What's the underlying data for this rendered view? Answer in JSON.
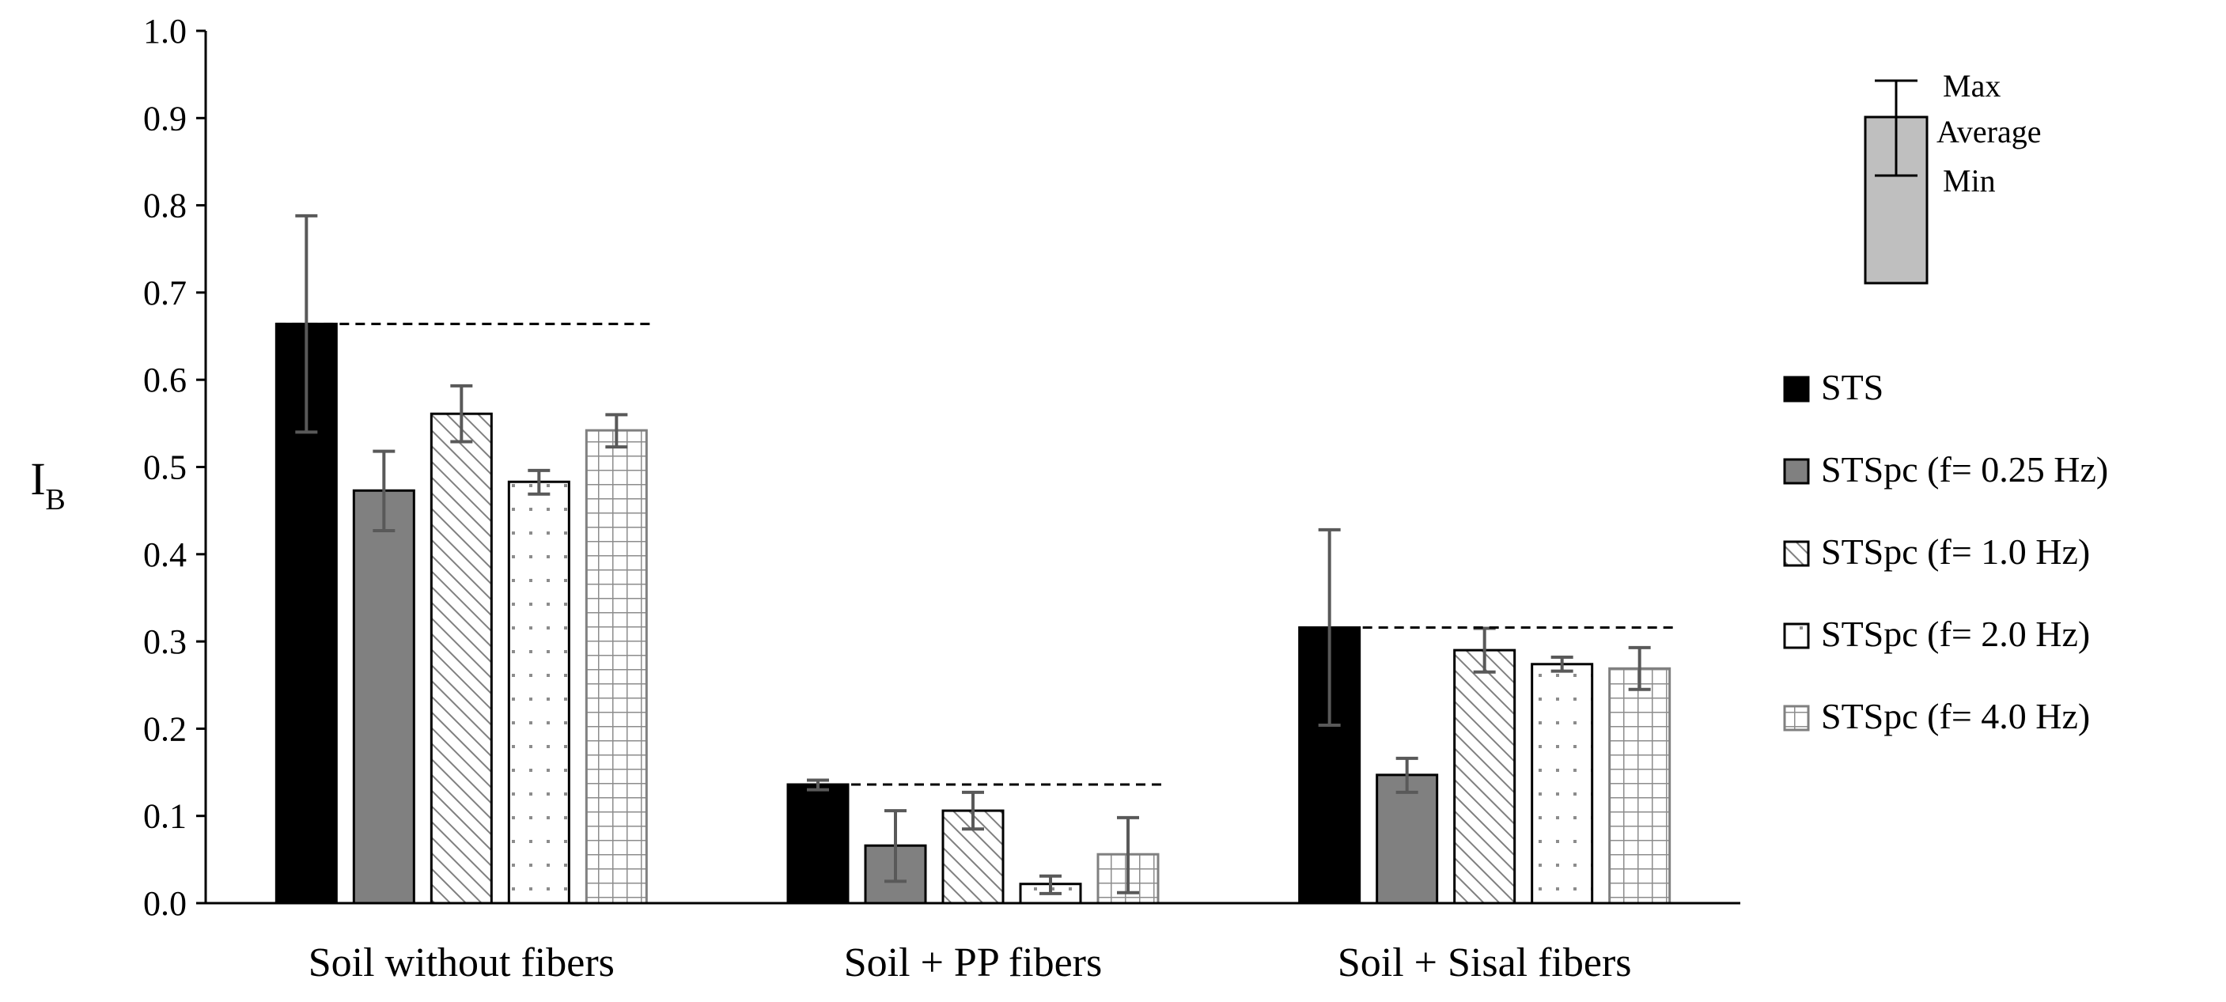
{
  "chart_data": {
    "type": "bar",
    "title": "",
    "xlabel": "",
    "ylabel": "I",
    "ylabel_subscript": "B",
    "ylim": [
      0,
      1.0
    ],
    "yticks": [
      "0.0",
      "0.1",
      "0.2",
      "0.3",
      "0.4",
      "0.5",
      "0.6",
      "0.7",
      "0.8",
      "0.9",
      "1.0"
    ],
    "categories": [
      "Soil without fibers",
      "Soil + PP fibers",
      "Soil + Sisal fibers"
    ],
    "series": [
      {
        "name": "STS",
        "pattern": "solid-black",
        "values": [
          0.664,
          0.136,
          0.316
        ],
        "min": [
          0.54,
          0.13,
          0.204
        ],
        "max": [
          0.788,
          0.141,
          0.428
        ]
      },
      {
        "name": "STSpc (f= 0.25 Hz)",
        "pattern": "solid-gray",
        "values": [
          0.473,
          0.066,
          0.147
        ],
        "min": [
          0.427,
          0.025,
          0.127
        ],
        "max": [
          0.518,
          0.106,
          0.166
        ]
      },
      {
        "name": "STSpc (f= 1.0 Hz)",
        "pattern": "diagonal",
        "values": [
          0.561,
          0.106,
          0.29
        ],
        "min": [
          0.529,
          0.085,
          0.265
        ],
        "max": [
          0.593,
          0.127,
          0.315
        ]
      },
      {
        "name": "STSpc (f= 2.0 Hz)",
        "pattern": "dots",
        "values": [
          0.483,
          0.022,
          0.274
        ],
        "min": [
          0.469,
          0.011,
          0.266
        ],
        "max": [
          0.496,
          0.031,
          0.282
        ]
      },
      {
        "name": "STSpc (f= 4.0 Hz)",
        "pattern": "grid",
        "values": [
          0.542,
          0.056,
          0.269
        ],
        "min": [
          0.523,
          0.012,
          0.245
        ],
        "max": [
          0.56,
          0.098,
          0.293
        ]
      }
    ],
    "reference_lines": [
      0.664,
      0.136,
      0.316
    ],
    "legend_position": "right",
    "error_bar_key": {
      "max_label": "Max",
      "average_label": "Average",
      "min_label": "Min"
    },
    "colors": {
      "black": "#000000",
      "gray": "#808080",
      "error": "#595959",
      "axis": "#000000",
      "key_fill": "#bfbfbf"
    }
  }
}
